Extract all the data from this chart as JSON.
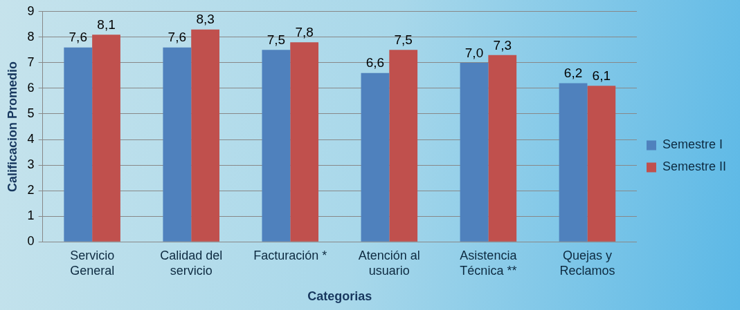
{
  "chart_data": {
    "type": "bar",
    "xlabel": "Categorias",
    "ylabel": "Calificacion Promedio",
    "categories": [
      "Servicio General",
      "Calidad del servicio",
      "Facturación *",
      "Atención al usuario",
      "Asistencia Técnica **",
      "Quejas y Reclamos"
    ],
    "series": [
      {
        "name": "Semestre I",
        "color": "#4f81bd",
        "values": [
          7.6,
          7.6,
          7.5,
          6.6,
          7.0,
          6.2
        ],
        "value_labels": [
          "7,6",
          "7,6",
          "7,5",
          "6,6",
          "7,0",
          "6,2"
        ]
      },
      {
        "name": "Semestre II",
        "color": "#c0504d",
        "values": [
          8.1,
          8.3,
          7.8,
          7.5,
          7.3,
          6.1
        ],
        "value_labels": [
          "8,1",
          "8,3",
          "7,8",
          "7,5",
          "7,3",
          "6,1"
        ]
      }
    ],
    "ylim": [
      0,
      9
    ],
    "yticks": [
      0,
      1,
      2,
      3,
      4,
      5,
      6,
      7,
      8,
      9
    ],
    "grid": "y",
    "legend": "right"
  }
}
